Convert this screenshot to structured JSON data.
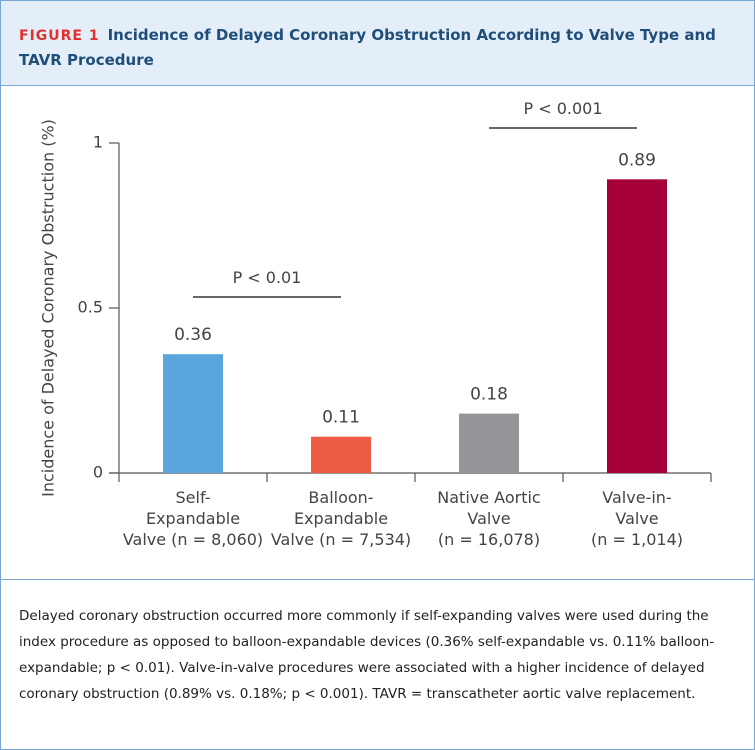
{
  "header": {
    "label": "FIGURE 1",
    "title": "Incidence of Delayed Coronary Obstruction According to Valve Type and TAVR Procedure"
  },
  "chart_data": {
    "type": "bar",
    "y_label": "Incidence of Delayed Coronary Obstruction (%)",
    "categories": [
      "Self-\nExpandable\nValve (n = 8,060)",
      "Balloon-\nExpandable\nValve (n = 7,534)",
      "Native Aortic\nValve\n(n = 16,078)",
      "Valve-in-\nValve\n(n = 1,014)"
    ],
    "values": [
      0.36,
      0.11,
      0.18,
      0.89
    ],
    "colors": [
      "#5aa5dc",
      "#ef5c45",
      "#939598",
      "#a5003a"
    ],
    "ylim": [
      0,
      1
    ],
    "yticks": [
      0,
      0.5,
      1
    ],
    "annotations": [
      "P < 0.01",
      "P < 0.001"
    ]
  },
  "caption": "Delayed coronary obstruction occurred more commonly if self-expanding valves were used during the index procedure as opposed to balloon-expandable devices (0.36% self-expandable vs. 0.11% balloon-expandable; p < 0.01). Valve-in-valve procedures were associated with a higher incidence of delayed coronary obstruction (0.89% vs. 0.18%; p < 0.001). TAVR = transcatheter aortic valve replacement."
}
